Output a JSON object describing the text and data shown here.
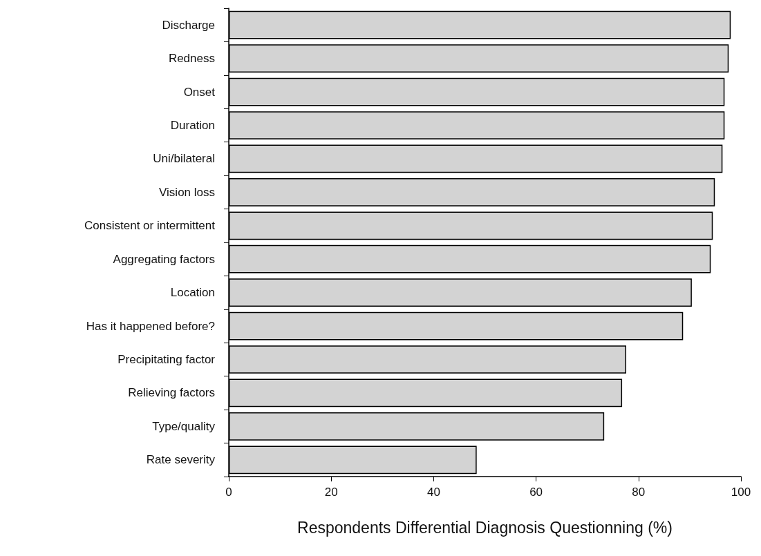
{
  "chart_data": {
    "type": "bar",
    "orientation": "horizontal",
    "xlabel": "Respondents Differential Diagnosis Questionning (%)",
    "categories": [
      "Discharge",
      "Redness",
      "Onset",
      "Duration",
      "Uni/bilateral",
      "Vision loss",
      "Consistent or intermittent",
      "Aggregating factors",
      "Location",
      "Has it happened before?",
      "Precipitating factor",
      "Relieving factors",
      "Type/quality",
      "Rate severity"
    ],
    "values": [
      98.0,
      97.6,
      96.8,
      96.8,
      96.4,
      94.9,
      94.5,
      94.1,
      90.4,
      88.7,
      77.6,
      76.8,
      73.3,
      48.4
    ],
    "color": "#d3d3d3",
    "xlim": [
      0,
      100
    ],
    "xticks": [
      0,
      20,
      40,
      60,
      80,
      100
    ],
    "grid": false
  }
}
